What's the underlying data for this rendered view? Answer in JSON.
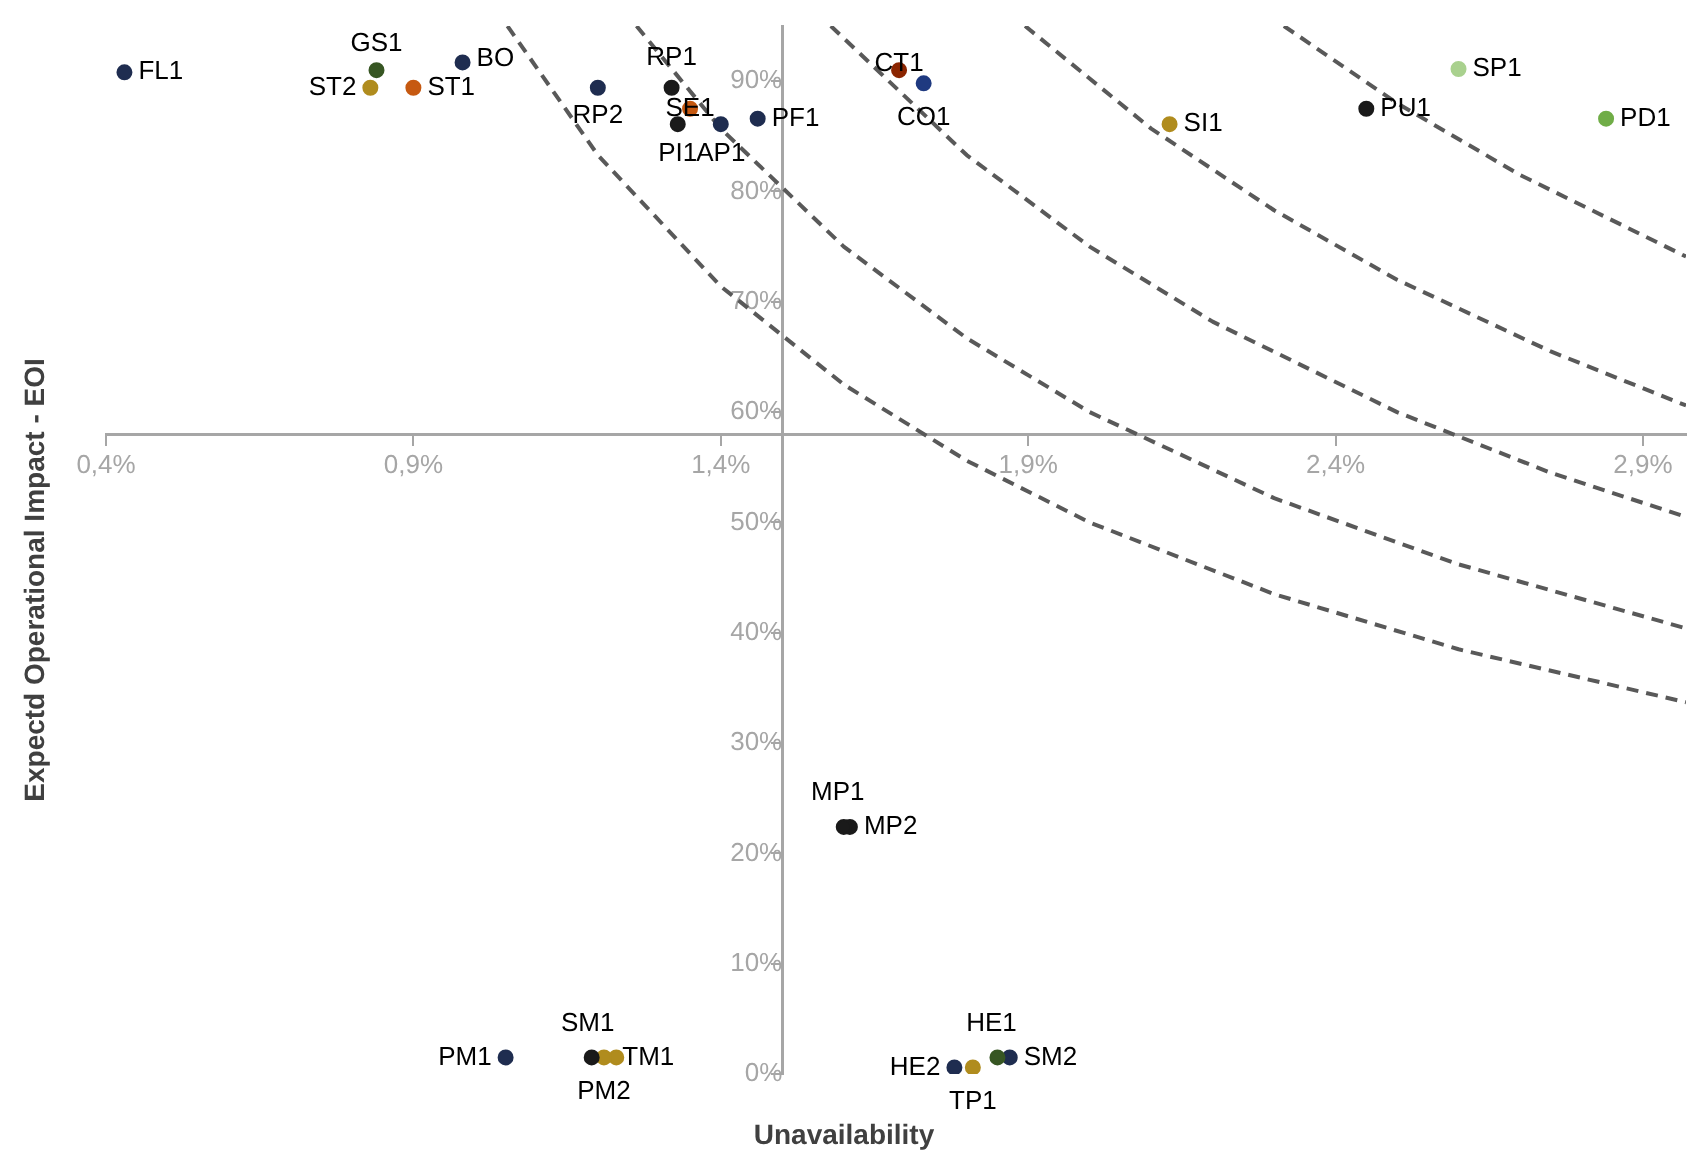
{
  "chart_data": {
    "type": "scatter",
    "xlabel": "Unavailability",
    "ylabel": "Expectd Operational Impact - EOI",
    "line_style": "dashed",
    "xlim": [
      0.4,
      2.97
    ],
    "ylim": [
      0,
      95
    ],
    "xticks": [
      {
        "value": 0.4,
        "label": "0,4%"
      },
      {
        "value": 0.9,
        "label": "0,9%"
      },
      {
        "value": 1.4,
        "label": "1,4%"
      },
      {
        "value": 1.9,
        "label": "1,9%"
      },
      {
        "value": 2.4,
        "label": "2,4%"
      },
      {
        "value": 2.9,
        "label": "2,9%"
      }
    ],
    "yticks": [
      {
        "value": 0,
        "label": "0%"
      },
      {
        "value": 10,
        "label": "10%"
      },
      {
        "value": 20,
        "label": "20%"
      },
      {
        "value": 30,
        "label": "30%"
      },
      {
        "value": 40,
        "label": "40%"
      },
      {
        "value": 50,
        "label": "50%"
      },
      {
        "value": 60,
        "label": "60%"
      },
      {
        "value": 70,
        "label": "70%"
      },
      {
        "value": 80,
        "label": "80%"
      },
      {
        "value": 90,
        "label": "90%"
      }
    ],
    "series": [
      {
        "name": "FL1",
        "color": "#1f2d50",
        "x": [
          0.43
        ],
        "values": [
          90.8
        ]
      },
      {
        "name": "GS1",
        "color": "#375623",
        "x": [
          0.84
        ],
        "values": [
          91.0
        ]
      },
      {
        "name": "ST2",
        "color": "#b08c1e",
        "x": [
          0.83
        ],
        "values": [
          89.4
        ]
      },
      {
        "name": "ST1",
        "color": "#c65911",
        "x": [
          0.9
        ],
        "values": [
          89.4
        ]
      },
      {
        "name": "BO",
        "color": "#1f2d50",
        "x": [
          0.98
        ],
        "values": [
          91.7
        ]
      },
      {
        "name": "RP2",
        "color": "#1f2d50",
        "x": [
          1.2
        ],
        "values": [
          89.4
        ]
      },
      {
        "name": "RP1",
        "color": "#1a1a1a",
        "x": [
          1.32
        ],
        "values": [
          89.4
        ]
      },
      {
        "name": "SE1",
        "color": "#c65911",
        "x": [
          1.35
        ],
        "values": [
          87.5
        ]
      },
      {
        "name": "PI1",
        "color": "#1a1a1a",
        "x": [
          1.33
        ],
        "values": [
          86.1
        ]
      },
      {
        "name": "AP1",
        "color": "#1f2d50",
        "x": [
          1.4
        ],
        "values": [
          86.1
        ]
      },
      {
        "name": "PF1",
        "color": "#1f2d50",
        "x": [
          1.46
        ],
        "values": [
          86.6
        ]
      },
      {
        "name": "CT1",
        "color": "#8b2500",
        "x": [
          1.69
        ],
        "values": [
          91.0
        ]
      },
      {
        "name": "CO1",
        "color": "#1f3a80",
        "x": [
          1.73
        ],
        "values": [
          89.8
        ]
      },
      {
        "name": "SI1",
        "color": "#b08c1e",
        "x": [
          2.13
        ],
        "values": [
          86.1
        ]
      },
      {
        "name": "PU1",
        "color": "#1a1a1a",
        "x": [
          2.45
        ],
        "values": [
          87.5
        ]
      },
      {
        "name": "SP1",
        "color": "#a9d18e",
        "x": [
          2.6
        ],
        "values": [
          91.1
        ]
      },
      {
        "name": "PD1",
        "color": "#70ad47",
        "x": [
          2.84
        ],
        "values": [
          86.6
        ]
      },
      {
        "name": "MP1",
        "color": "#1a1a1a",
        "x": [
          1.6
        ],
        "values": [
          22.4
        ]
      },
      {
        "name": "MP2",
        "color": "#1a1a1a",
        "x": [
          1.61
        ],
        "values": [
          22.4
        ]
      },
      {
        "name": "PM1",
        "color": "#1f2d50",
        "x": [
          1.05
        ],
        "values": [
          1.5
        ]
      },
      {
        "name": "SM1",
        "color": "#1a1a1a",
        "x": [
          1.19
        ],
        "values": [
          1.5
        ]
      },
      {
        "name": "PM2",
        "color": "#b08c1e",
        "x": [
          1.21
        ],
        "values": [
          1.5
        ]
      },
      {
        "name": "TM1",
        "color": "#b08c1e",
        "x": [
          1.23
        ],
        "values": [
          1.5
        ]
      },
      {
        "name": "HE2",
        "color": "#1f2d50",
        "x": [
          1.78
        ],
        "values": [
          0.6
        ]
      },
      {
        "name": "TP1",
        "color": "#b08c1e",
        "x": [
          1.81
        ],
        "values": [
          0.6
        ]
      },
      {
        "name": "HE1",
        "color": "#375623",
        "x": [
          1.85
        ],
        "values": [
          1.5
        ]
      },
      {
        "name": "SM2",
        "color": "#1f2d50",
        "x": [
          1.87
        ],
        "values": [
          1.5
        ]
      },
      {
        "type": "line",
        "color": "#595959",
        "x": [
          1.053,
          1.2,
          1.4,
          1.6,
          1.8,
          2.0,
          2.3,
          2.6,
          2.97
        ],
        "values": [
          95,
          83.3,
          71.4,
          62.5,
          55.6,
          50.0,
          43.5,
          38.5,
          33.7
        ]
      },
      {
        "type": "line",
        "color": "#595959",
        "x": [
          1.263,
          1.4,
          1.6,
          1.8,
          2.0,
          2.3,
          2.6,
          2.97
        ],
        "values": [
          95,
          85.7,
          75.0,
          66.7,
          60.0,
          52.2,
          46.2,
          40.4
        ]
      },
      {
        "type": "line",
        "color": "#595959",
        "x": [
          1.579,
          1.8,
          2.0,
          2.2,
          2.5,
          2.75,
          2.97
        ],
        "values": [
          95,
          83.3,
          75.0,
          68.2,
          60.0,
          54.5,
          50.5
        ]
      },
      {
        "type": "line",
        "color": "#595959",
        "x": [
          1.895,
          2.1,
          2.3,
          2.5,
          2.75,
          2.97
        ],
        "values": [
          95,
          85.7,
          78.3,
          72.0,
          65.5,
          60.6
        ]
      },
      {
        "type": "line",
        "color": "#595959",
        "x": [
          2.316,
          2.5,
          2.7,
          2.97
        ],
        "values": [
          95,
          88.0,
          81.5,
          74.1
        ]
      }
    ]
  }
}
